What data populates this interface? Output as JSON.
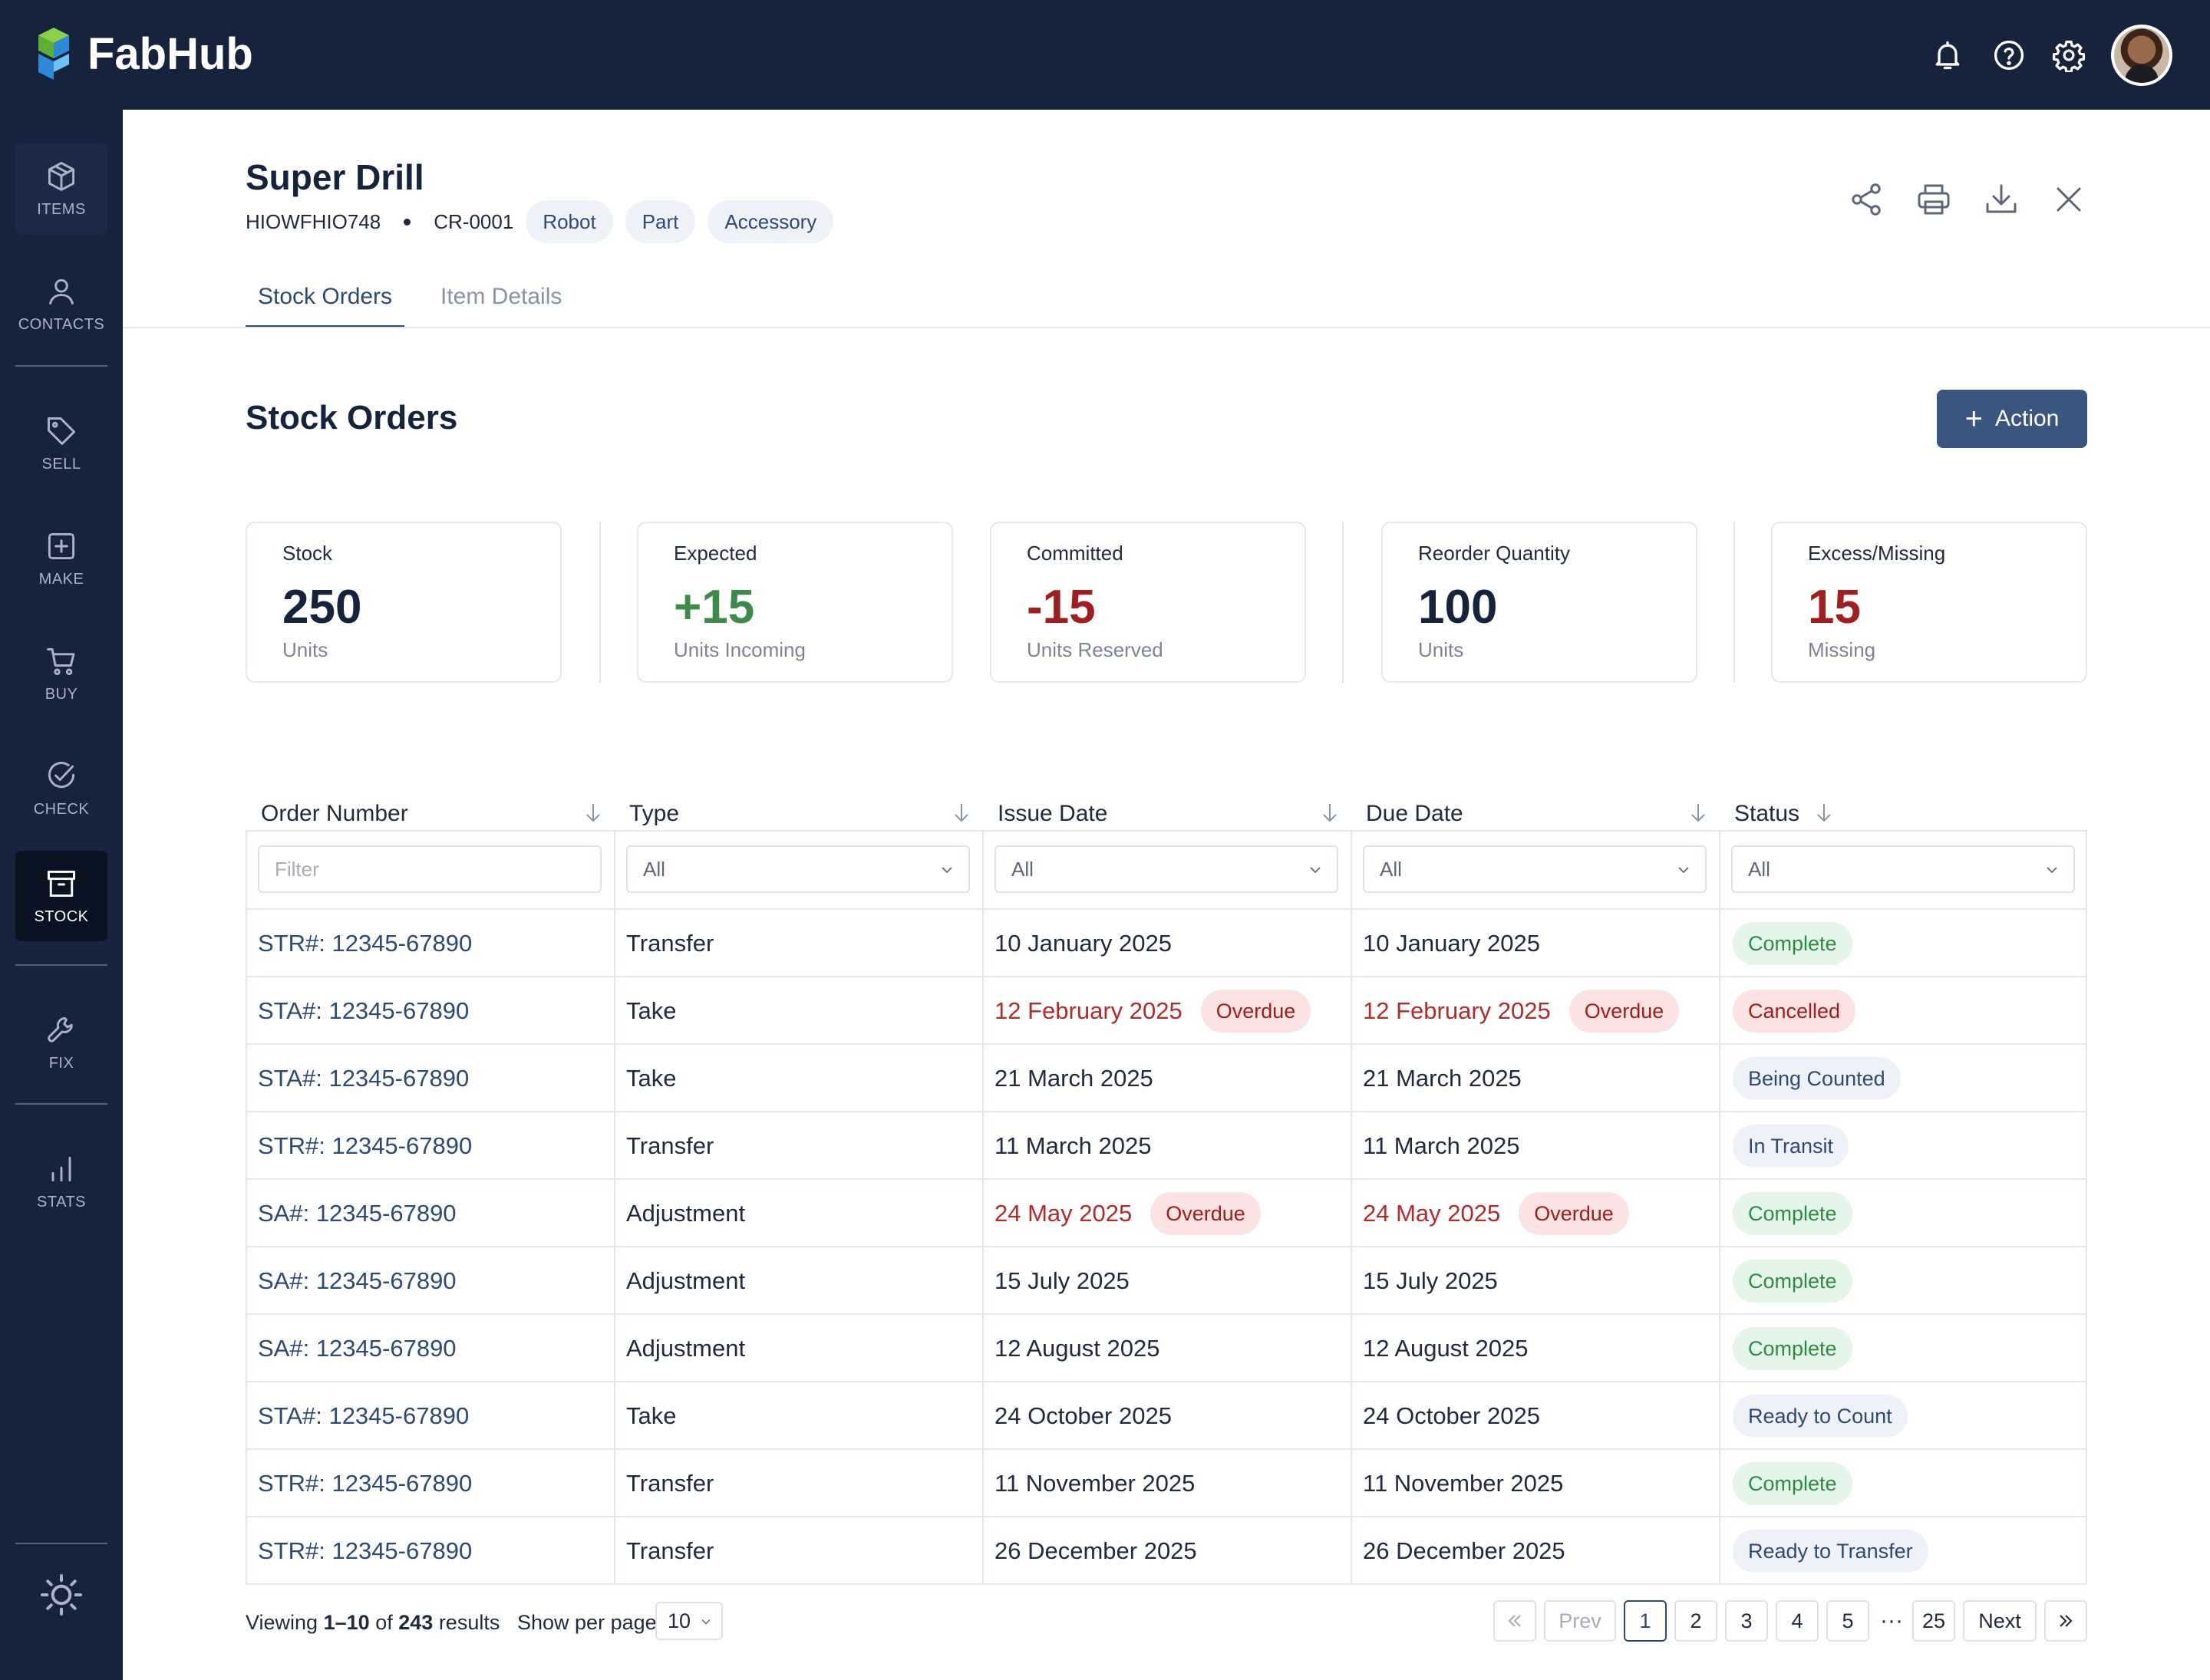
{
  "app": {
    "name": "FabHub"
  },
  "topbar": {
    "icons": [
      "bell-icon",
      "help-icon",
      "gear-icon"
    ]
  },
  "sidebar": {
    "items": [
      {
        "label": "ITEMS",
        "icon": "box-icon"
      },
      {
        "label": "CONTACTS",
        "icon": "user-icon"
      },
      {
        "label": "SELL",
        "icon": "tag-icon"
      },
      {
        "label": "MAKE",
        "icon": "plus-square-icon"
      },
      {
        "label": "BUY",
        "icon": "cart-icon"
      },
      {
        "label": "CHECK",
        "icon": "check-circle-icon"
      },
      {
        "label": "STOCK",
        "icon": "archive-icon"
      },
      {
        "label": "FIX",
        "icon": "wrench-icon"
      },
      {
        "label": "STATS",
        "icon": "bar-chart-icon"
      }
    ],
    "bottom_icon": "sun-icon"
  },
  "item": {
    "title": "Super Drill",
    "code": "HIOWFHIO748",
    "ref": "CR-0001",
    "tags": [
      "Robot",
      "Part",
      "Accessory"
    ]
  },
  "header_actions": [
    "share-icon",
    "print-icon",
    "download-icon",
    "close-icon"
  ],
  "tabs": {
    "active": "Stock Orders",
    "inactive": "Item Details"
  },
  "section": {
    "title": "Stock Orders",
    "action_label": "Action"
  },
  "stats": [
    {
      "label": "Stock",
      "value": "250",
      "sub": "Units",
      "color": "#16233d"
    },
    {
      "label": "Expected",
      "value": "+15",
      "sub": "Units Incoming",
      "color": "#3d8a4a"
    },
    {
      "label": "Committed",
      "value": "-15",
      "sub": "Units Reserved",
      "color": "#a01e1e"
    },
    {
      "label": "Reorder Quantity",
      "value": "100",
      "sub": "Units",
      "color": "#16233d"
    },
    {
      "label": "Excess/Missing",
      "value": "15",
      "sub": "Missing",
      "color": "#a01e1e"
    }
  ],
  "table": {
    "columns": [
      "Order Number",
      "Type",
      "Issue Date",
      "Due Date",
      "Status"
    ],
    "filters": {
      "order_placeholder": "Filter",
      "select_value": "All"
    },
    "overdue_label": "Overdue",
    "rows": [
      {
        "order": "STR#: 12345-67890",
        "type": "Transfer",
        "issue": "10 January 2025",
        "due": "10 January 2025",
        "overdue": false,
        "status": "Complete",
        "status_kind": "complete"
      },
      {
        "order": "STA#: 12345-67890",
        "type": "Take",
        "issue": "12 February 2025",
        "due": "12 February 2025",
        "overdue": true,
        "status": "Cancelled",
        "status_kind": "cancelled"
      },
      {
        "order": "STA#: 12345-67890",
        "type": "Take",
        "issue": "21 March 2025",
        "due": "21 March 2025",
        "overdue": false,
        "status": "Being Counted",
        "status_kind": "neutral"
      },
      {
        "order": "STR#: 12345-67890",
        "type": "Transfer",
        "issue": "11 March 2025",
        "due": "11 March 2025",
        "overdue": false,
        "status": "In Transit",
        "status_kind": "neutral"
      },
      {
        "order": "SA#: 12345-67890",
        "type": "Adjustment",
        "issue": "24 May 2025",
        "due": "24 May 2025",
        "overdue": true,
        "status": "Complete",
        "status_kind": "complete"
      },
      {
        "order": "SA#: 12345-67890",
        "type": "Adjustment",
        "issue": "15 July 2025",
        "due": "15 July 2025",
        "overdue": false,
        "status": "Complete",
        "status_kind": "complete"
      },
      {
        "order": "SA#: 12345-67890",
        "type": "Adjustment",
        "issue": "12 August 2025",
        "due": "12 August 2025",
        "overdue": false,
        "status": "Complete",
        "status_kind": "complete"
      },
      {
        "order": "STA#: 12345-67890",
        "type": "Take",
        "issue": "24 October 2025",
        "due": "24 October 2025",
        "overdue": false,
        "status": "Ready to Count",
        "status_kind": "neutral"
      },
      {
        "order": "STR#: 12345-67890",
        "type": "Transfer",
        "issue": "11 November 2025",
        "due": "11 November 2025",
        "overdue": false,
        "status": "Complete",
        "status_kind": "complete"
      },
      {
        "order": "STR#: 12345-67890",
        "type": "Transfer",
        "issue": "26 December 2025",
        "due": "26 December 2025",
        "overdue": false,
        "status": "Ready to Transfer",
        "status_kind": "neutral"
      }
    ]
  },
  "footer": {
    "viewing_prefix": "Viewing",
    "range": "1–10",
    "of": "of",
    "total": "243",
    "results": "results",
    "per_page_label": "Show per page",
    "per_page": "10"
  },
  "pagination": {
    "prev": "Prev",
    "next": "Next",
    "pages": [
      "1",
      "2",
      "3",
      "4",
      "5"
    ],
    "ellipsis": "···",
    "last": "25",
    "current": "1"
  }
}
